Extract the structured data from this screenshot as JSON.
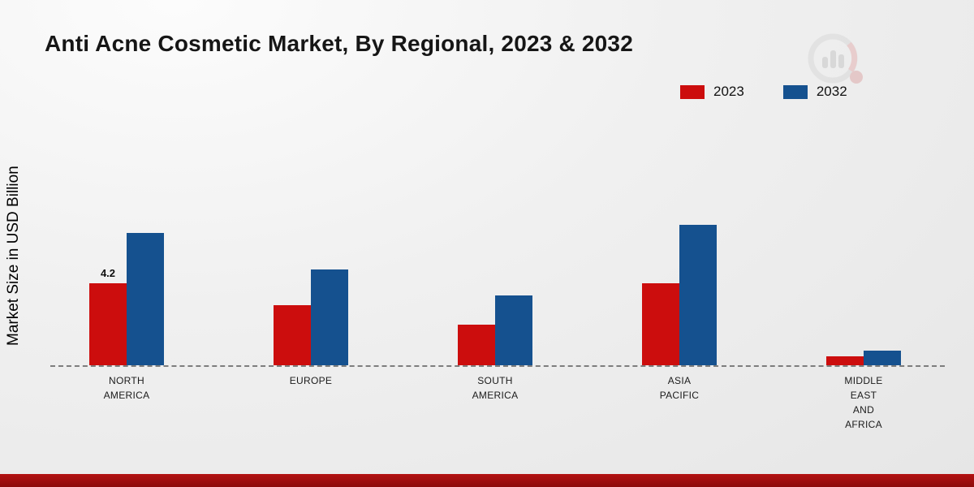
{
  "chart_data": {
    "type": "bar",
    "title": "Anti Acne Cosmetic Market, By Regional, 2023 & 2032",
    "xlabel": "",
    "ylabel": "Market Size in USD Billion",
    "categories": [
      "NORTH AMERICA",
      "EUROPE",
      "SOUTH AMERICA",
      "ASIA PACIFIC",
      "MIDDLE EAST AND AFRICA"
    ],
    "category_label_lines": [
      [
        "NORTH",
        "AMERICA"
      ],
      [
        "EUROPE"
      ],
      [
        "SOUTH",
        "AMERICA"
      ],
      [
        "ASIA",
        "PACIFIC"
      ],
      [
        "MIDDLE",
        "EAST",
        "AND",
        "AFRICA"
      ]
    ],
    "series": [
      {
        "name": "2023",
        "color": "#cc0d0d",
        "values": [
          4.2,
          3.1,
          2.1,
          4.2,
          0.45
        ]
      },
      {
        "name": "2032",
        "color": "#15518f",
        "values": [
          6.8,
          4.9,
          3.6,
          7.2,
          0.75
        ]
      }
    ],
    "annotations": [
      {
        "category": "NORTH AMERICA",
        "series": "2023",
        "text": "4.2"
      }
    ],
    "ylim": [
      0,
      8
    ],
    "grid": false,
    "legend_position": "top-right",
    "baseline_style": "dashed"
  },
  "brand": {
    "footer_color": "#9e1111",
    "logo_name": "market-research-logo"
  }
}
